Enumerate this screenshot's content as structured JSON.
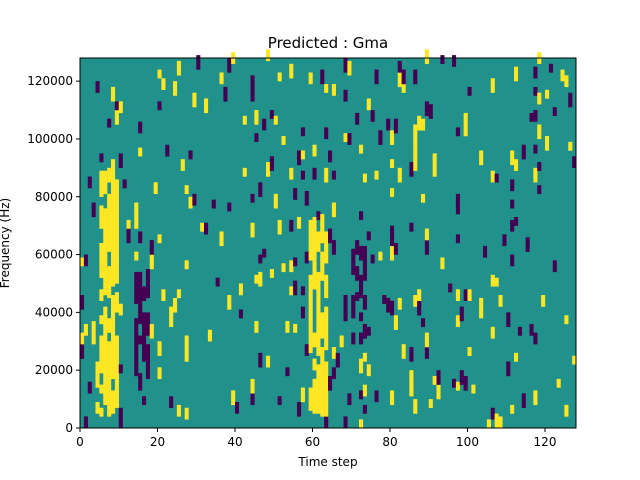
{
  "chart_data": {
    "type": "heatmap",
    "title": "Predicted : Gma",
    "xlabel": "Time step",
    "ylabel": "Frequency (Hz)",
    "xlim": [
      0,
      128
    ],
    "ylim": [
      0,
      128000
    ],
    "x_ticks": [
      0,
      20,
      40,
      60,
      80,
      100,
      120
    ],
    "y_ticks": [
      0,
      20000,
      40000,
      60000,
      80000,
      100000,
      120000
    ],
    "x_tick_labels": [
      "0",
      "20",
      "40",
      "60",
      "80",
      "100",
      "120"
    ],
    "y_tick_labels": [
      "0",
      "20000",
      "40000",
      "60000",
      "80000",
      "100000",
      "120000"
    ],
    "value_scale": [
      -1,
      0,
      1
    ],
    "colors": {
      "low": "#440154",
      "mid": "#21918c",
      "high": "#fde725"
    },
    "dense_columns_high": [
      {
        "x_start": 5,
        "x_end": 10,
        "y_start": 4000,
        "y_end": 90000
      },
      {
        "x_start": 59,
        "x_end": 64,
        "y_start": 4000,
        "y_end": 70000
      }
    ],
    "dense_columns_low": [
      {
        "x_start": 14,
        "x_end": 18,
        "y_start": 12000,
        "y_end": 52000
      },
      {
        "x_start": 70,
        "x_end": 74,
        "y_start": 28000,
        "y_end": 62000
      }
    ],
    "grid": false
  }
}
